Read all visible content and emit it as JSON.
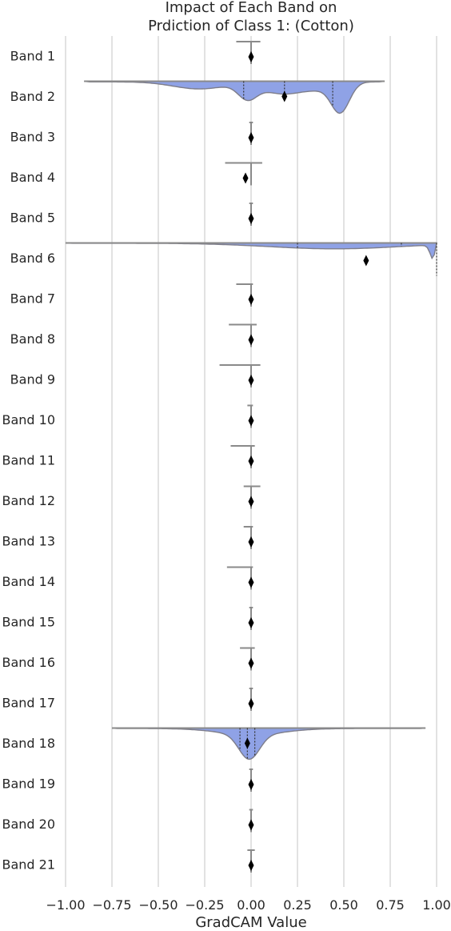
{
  "chart_data": {
    "type": "violin",
    "title_line1": "Impact of Each Band on",
    "title_line2": "Prdiction of Class 1: (Cotton)",
    "xlabel": "GradCAM Value",
    "xlim": [
      -1.0,
      1.0
    ],
    "xticks": [
      "−1.00",
      "−0.75",
      "−0.50",
      "−0.25",
      "0.00",
      "0.25",
      "0.50",
      "0.75",
      "1.00"
    ],
    "grid": true,
    "colors": {
      "violin_fill": "#8fa2e6",
      "marker": "#000000"
    },
    "bands": [
      {
        "label": "Band 1",
        "mean": 0.0,
        "min": -0.08,
        "max": 0.05
      },
      {
        "label": "Band 2",
        "mean": 0.18,
        "min": -0.9,
        "max": 0.72,
        "quartiles": [
          -0.04,
          0.18,
          0.44
        ]
      },
      {
        "label": "Band 3",
        "mean": 0.0,
        "min": -0.01,
        "max": 0.01
      },
      {
        "label": "Band 4",
        "mean": -0.03,
        "min": -0.14,
        "max": 0.06
      },
      {
        "label": "Band 5",
        "mean": 0.0,
        "min": -0.01,
        "max": 0.01
      },
      {
        "label": "Band 6",
        "mean": 0.62,
        "min": -1.0,
        "max": 1.0,
        "quartiles": [
          0.25,
          0.81,
          1.0
        ]
      },
      {
        "label": "Band 7",
        "mean": 0.0,
        "min": -0.08,
        "max": 0.01
      },
      {
        "label": "Band 8",
        "mean": 0.0,
        "min": -0.12,
        "max": 0.03
      },
      {
        "label": "Band 9",
        "mean": 0.0,
        "min": -0.17,
        "max": 0.05
      },
      {
        "label": "Band 10",
        "mean": 0.0,
        "min": -0.02,
        "max": 0.01
      },
      {
        "label": "Band 11",
        "mean": 0.0,
        "min": -0.11,
        "max": 0.02
      },
      {
        "label": "Band 12",
        "mean": 0.0,
        "min": -0.04,
        "max": 0.05
      },
      {
        "label": "Band 13",
        "mean": 0.0,
        "min": -0.04,
        "max": 0.01
      },
      {
        "label": "Band 14",
        "mean": 0.0,
        "min": -0.13,
        "max": 0.01
      },
      {
        "label": "Band 15",
        "mean": 0.0,
        "min": -0.01,
        "max": 0.01
      },
      {
        "label": "Band 16",
        "mean": 0.0,
        "min": -0.06,
        "max": 0.02
      },
      {
        "label": "Band 17",
        "mean": 0.0,
        "min": -0.01,
        "max": 0.01
      },
      {
        "label": "Band 18",
        "mean": -0.02,
        "min": -0.75,
        "max": 0.94,
        "quartiles": [
          -0.06,
          -0.02,
          0.02
        ]
      },
      {
        "label": "Band 19",
        "mean": 0.0,
        "min": -0.01,
        "max": 0.01
      },
      {
        "label": "Band 20",
        "mean": 0.0,
        "min": -0.01,
        "max": 0.01
      },
      {
        "label": "Band 21",
        "mean": 0.0,
        "min": -0.02,
        "max": 0.02
      }
    ]
  }
}
